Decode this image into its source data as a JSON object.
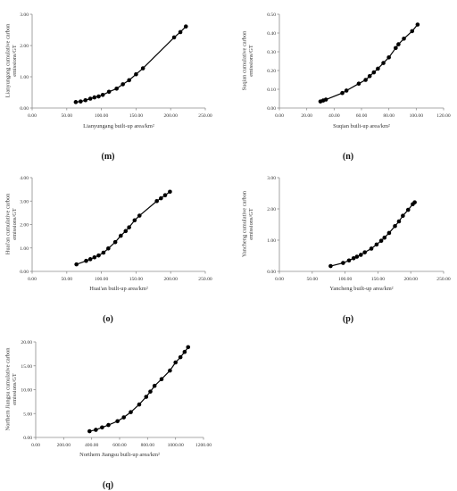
{
  "chart_data": [
    {
      "panel": "(m)",
      "type": "line",
      "xlabel": "Lianyungang built-up area/km²",
      "ylabel": "Lianyungang cumulative carbon emissions/GT",
      "xlim": [
        0,
        250
      ],
      "xticks": [
        "0.00",
        "50.00",
        "100.00",
        "150.00",
        "200.00",
        "250.00"
      ],
      "ylim": [
        0,
        3
      ],
      "yticks": [
        "0.00",
        "1.00",
        "2.00",
        "3.00"
      ],
      "series": [
        {
          "x": [
            63,
            70,
            77,
            84,
            90,
            96,
            102,
            111,
            122,
            131,
            140,
            150,
            160,
            205,
            214,
            222
          ],
          "y": [
            0.19,
            0.21,
            0.25,
            0.3,
            0.34,
            0.37,
            0.42,
            0.52,
            0.62,
            0.76,
            0.89,
            1.08,
            1.27,
            2.26,
            2.43,
            2.61
          ]
        }
      ]
    },
    {
      "panel": "(n)",
      "type": "line",
      "xlabel": "Suqian built-up area/km²",
      "ylabel": "Suqian cumulative carbon emissions/GT",
      "xlim": [
        0,
        120
      ],
      "xticks": [
        "0.00",
        "20.00",
        "40.00",
        "60.00",
        "80.00",
        "100.00",
        "120.00"
      ],
      "ylim": [
        0,
        0.5
      ],
      "yticks": [
        "0.00",
        "0.10",
        "0.20",
        "0.30",
        "0.40",
        "0.50"
      ],
      "series": [
        {
          "x": [
            30,
            32,
            34,
            46,
            49,
            58,
            63,
            66,
            69,
            72,
            76,
            80,
            85,
            87,
            91,
            97,
            101
          ],
          "y": [
            0.035,
            0.04,
            0.045,
            0.08,
            0.093,
            0.13,
            0.15,
            0.17,
            0.19,
            0.21,
            0.24,
            0.27,
            0.32,
            0.34,
            0.37,
            0.41,
            0.445
          ]
        }
      ]
    },
    {
      "panel": "(o)",
      "type": "line",
      "xlabel": "Huai'an built-up area/km²",
      "ylabel": "Huai'an cumulative carbon emissions/GT",
      "xlim": [
        0,
        250
      ],
      "xticks": [
        "0.00",
        "50.00",
        "100.00",
        "150.00",
        "200.00",
        "250.00"
      ],
      "ylim": [
        0,
        4
      ],
      "yticks": [
        "0.00",
        "1.00",
        "2.00",
        "3.00",
        "4.00"
      ],
      "series": [
        {
          "x": [
            64,
            78,
            84,
            90,
            96,
            103,
            110,
            120,
            128,
            135,
            140,
            148,
            155,
            180,
            186,
            192,
            199
          ],
          "y": [
            0.3,
            0.45,
            0.52,
            0.6,
            0.68,
            0.8,
            0.98,
            1.25,
            1.52,
            1.72,
            1.88,
            2.18,
            2.38,
            3.0,
            3.12,
            3.25,
            3.4
          ]
        }
      ]
    },
    {
      "panel": "(p)",
      "type": "line",
      "xlabel": "Yancheng built-up area/km²",
      "ylabel": "Yancheng cumulative carbon emissions/GT",
      "xlim": [
        0,
        250
      ],
      "xticks": [
        "0.00",
        "50.00",
        "100.00",
        "150.00",
        "200.00",
        "250.00"
      ],
      "ylim": [
        0,
        3
      ],
      "yticks": [
        "0.00",
        "1.00",
        "2.00",
        "3.00"
      ],
      "series": [
        {
          "x": [
            78,
            97,
            106,
            113,
            118,
            124,
            130,
            140,
            148,
            155,
            160,
            167,
            176,
            182,
            188,
            196,
            203,
            206
          ],
          "y": [
            0.17,
            0.27,
            0.35,
            0.42,
            0.47,
            0.53,
            0.61,
            0.73,
            0.86,
            0.98,
            1.08,
            1.23,
            1.45,
            1.6,
            1.78,
            1.97,
            2.15,
            2.21
          ]
        }
      ]
    },
    {
      "panel": "(q)",
      "type": "line",
      "xlabel": "Northern Jiangsu built-up area/km²",
      "ylabel": "Northern Jiangsu cumulative carbon emissions/GT",
      "xlim": [
        0,
        1200
      ],
      "xticks": [
        "0.00",
        "200.00",
        "400.00",
        "600.00",
        "800.00",
        "1000.00",
        "1200.00"
      ],
      "ylim": [
        0,
        20
      ],
      "yticks": [
        "0.00",
        "5.00",
        "10.00",
        "15.00",
        "20.00"
      ],
      "series": [
        {
          "x": [
            385,
            430,
            475,
            520,
            585,
            630,
            680,
            740,
            790,
            820,
            850,
            900,
            960,
            1000,
            1035,
            1065,
            1090
          ],
          "y": [
            1.3,
            1.6,
            2.1,
            2.6,
            3.4,
            4.2,
            5.3,
            6.9,
            8.5,
            9.6,
            10.8,
            12.2,
            14.0,
            15.7,
            16.8,
            17.9,
            18.9
          ]
        }
      ]
    }
  ]
}
